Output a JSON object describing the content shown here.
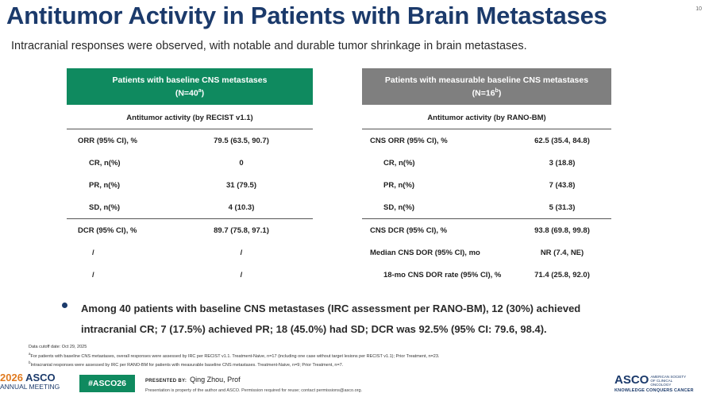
{
  "title": "Antitumor Activity in Patients with Brain Metastases",
  "page_number": "10",
  "subtitle": "Intracranial responses were observed, with notable and durable tumor shrinkage in brain metastases.",
  "left_table": {
    "header_line1": "Patients with baseline CNS metastases",
    "header_n": "(N=40",
    "header_sup": "a",
    "header_close": ")",
    "subheader": "Antitumor activity (by RECIST v1.1)",
    "rows": [
      {
        "label": "ORR (95% CI), %",
        "value": "79.5 (63.5, 90.7)"
      },
      {
        "label": "CR, n(%)",
        "value": "0"
      },
      {
        "label": "PR, n(%)",
        "value": "31 (79.5)"
      },
      {
        "label": "SD, n(%)",
        "value": "4 (10.3)"
      },
      {
        "label": "DCR (95% CI), %",
        "value": "89.7 (75.8, 97.1)"
      },
      {
        "label": "/",
        "value": "/"
      },
      {
        "label": "/",
        "value": "/"
      }
    ]
  },
  "right_table": {
    "header_line1": "Patients with measurable baseline CNS metastases",
    "header_n": "(N=16",
    "header_sup": "b",
    "header_close": ")",
    "subheader": "Antitumor activity (by RANO-BM)",
    "rows": [
      {
        "label": "CNS ORR (95% CI), %",
        "value": "62.5 (35.4, 84.8)"
      },
      {
        "label": "CR, n(%)",
        "value": "3 (18.8)"
      },
      {
        "label": "PR, n(%)",
        "value": "7 (43.8)"
      },
      {
        "label": "SD, n(%)",
        "value": "5 (31.3)"
      },
      {
        "label": "CNS DCR (95% CI), %",
        "value": "93.8 (69.8, 99.8)"
      },
      {
        "label": "Median CNS DOR (95% CI), mo",
        "value": "NR (7.4, NE)"
      },
      {
        "label": "18-mo CNS DOR rate (95% CI), %",
        "value": "71.4 (25.8, 92.0)"
      }
    ]
  },
  "bullet": {
    "line1": "Among 40 patients with baseline CNS metastases (IRC assessment per RANO-BM), 12 (30%) achieved",
    "line2": "intracranial CR; 7 (17.5%) achieved PR; 18 (45.0%) had SD; DCR was 92.5% (95% CI: 79.6, 98.4)."
  },
  "footnotes": {
    "cutoff": "Data cutoff date: Oct 29, 2025",
    "a_mark": "a",
    "a_text": "For patients with baseline CNS metastases, overall responses were assessed by IRC per RECIST v1.1. Treatment-Naive, n=17 (including one case without target lesions per RECIST v1.1); Prior Treatment, n=23.",
    "b_mark": "b",
    "b_text": "Intracranial responses were assessed by IRC per RANO-BM for patients with measurable baseline CNS metastases. Treatment-Naive, n=9; Prior Treatment, n=7."
  },
  "footer": {
    "year": "2026",
    "asco": "ASCO",
    "meeting": "ANNUAL MEETING",
    "hashtag": "#ASCO26",
    "presented_by": "PRESENTED BY:",
    "presenter": "Qing Zhou, Prof",
    "property_note": "Presentation is property of the author and ASCO. Permission required for reuse; contact permissions@asco.org.",
    "asco_right": "ASCO",
    "society": "AMERICAN SOCIETY OF CLINICAL ONCOLOGY",
    "tagline": "KNOWLEDGE CONQUERS CANCER"
  },
  "colors": {
    "title_navy": "#1b3a6b",
    "green_header": "#0f8a5f",
    "gray_header": "#7f7f7f",
    "year_orange": "#e07a1f"
  }
}
